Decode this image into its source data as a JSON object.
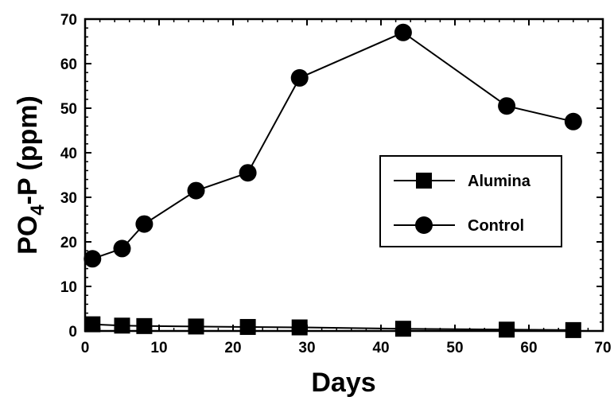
{
  "chart_data": {
    "type": "line",
    "title": "",
    "xlabel": "Days",
    "ylabel_main": "PO",
    "ylabel_sub": "4",
    "ylabel_rest": "-P (ppm)",
    "xlim": [
      0,
      70
    ],
    "ylim": [
      0,
      70
    ],
    "xticks": [
      "0",
      "10",
      "20",
      "30",
      "40",
      "50",
      "60",
      "70"
    ],
    "yticks": [
      "0",
      "10",
      "20",
      "30",
      "40",
      "50",
      "60",
      "70"
    ],
    "grid": false,
    "legend_position": "right",
    "series": [
      {
        "name": "Alumina",
        "marker": "square",
        "x": [
          1,
          5,
          8,
          15,
          22,
          29,
          43,
          57,
          66
        ],
        "y": [
          1.5,
          1.2,
          1.1,
          1.0,
          0.9,
          0.8,
          0.5,
          0.3,
          0.2
        ]
      },
      {
        "name": "Control",
        "marker": "circle",
        "x": [
          1,
          5,
          8,
          15,
          22,
          29,
          43,
          57,
          66
        ],
        "y": [
          16.2,
          18.5,
          24.0,
          31.5,
          35.5,
          56.8,
          67.0,
          50.5,
          47.0
        ]
      }
    ]
  }
}
